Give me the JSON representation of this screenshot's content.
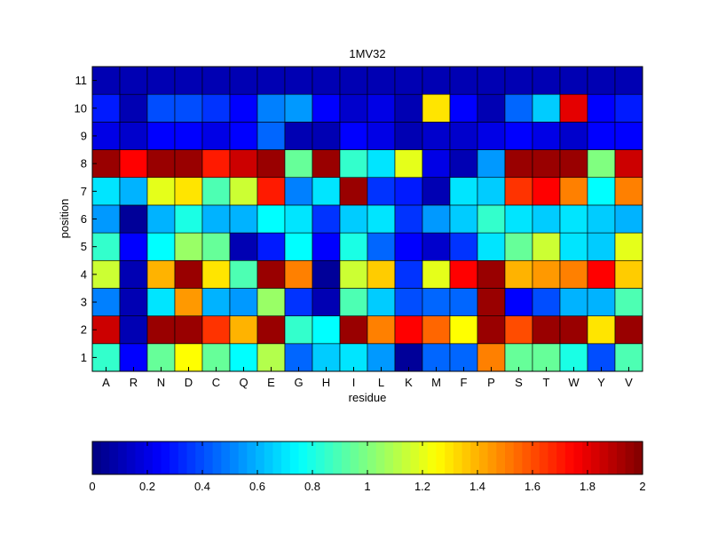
{
  "chart_data": {
    "type": "heatmap",
    "title": "1MV32",
    "xlabel": "residue",
    "ylabel": "position",
    "x_categories": [
      "A",
      "R",
      "N",
      "D",
      "C",
      "Q",
      "E",
      "G",
      "H",
      "I",
      "L",
      "K",
      "M",
      "F",
      "P",
      "S",
      "T",
      "W",
      "Y",
      "V"
    ],
    "y_categories": [
      "1",
      "2",
      "3",
      "4",
      "5",
      "6",
      "7",
      "8",
      "9",
      "10",
      "11"
    ],
    "values": [
      [
        0.85,
        0.25,
        0.95,
        1.25,
        0.95,
        0.75,
        1.1,
        0.45,
        0.65,
        0.7,
        0.55,
        0.05,
        0.45,
        0.45,
        1.5,
        0.95,
        0.95,
        0.8,
        0.4,
        0.9
      ],
      [
        1.85,
        0.1,
        1.95,
        1.95,
        1.65,
        1.4,
        1.95,
        0.85,
        0.75,
        1.95,
        1.5,
        1.75,
        1.55,
        1.25,
        1.95,
        1.6,
        1.95,
        1.95,
        1.3,
        1.95
      ],
      [
        0.5,
        0.1,
        0.7,
        1.45,
        0.6,
        0.55,
        1.05,
        0.35,
        0.1,
        0.9,
        0.65,
        0.4,
        0.45,
        0.45,
        1.95,
        0.25,
        0.4,
        0.6,
        0.6,
        0.9
      ],
      [
        1.15,
        0.1,
        1.4,
        1.95,
        1.3,
        0.9,
        1.95,
        1.5,
        0.05,
        1.15,
        1.35,
        0.35,
        1.2,
        1.75,
        1.95,
        1.4,
        1.45,
        1.5,
        1.75,
        1.35
      ],
      [
        0.85,
        0.25,
        0.75,
        1.05,
        0.95,
        0.1,
        0.3,
        0.75,
        0.25,
        0.8,
        0.45,
        0.25,
        0.15,
        0.35,
        0.7,
        0.95,
        1.15,
        0.7,
        0.65,
        1.2
      ],
      [
        0.55,
        0.05,
        0.6,
        0.8,
        0.6,
        0.6,
        0.75,
        0.7,
        0.35,
        0.65,
        0.7,
        0.35,
        0.55,
        0.65,
        0.85,
        0.7,
        0.65,
        0.7,
        0.65,
        0.6
      ],
      [
        0.7,
        0.6,
        1.2,
        1.3,
        0.9,
        1.15,
        1.7,
        0.5,
        0.7,
        1.95,
        0.35,
        0.3,
        0.1,
        0.7,
        0.65,
        1.65,
        1.75,
        1.5,
        0.75,
        1.5
      ],
      [
        1.95,
        1.75,
        1.95,
        1.95,
        1.7,
        1.85,
        1.95,
        0.95,
        1.95,
        0.85,
        0.7,
        1.2,
        0.2,
        0.1,
        0.55,
        1.95,
        1.95,
        1.95,
        1.0,
        1.85
      ],
      [
        0.2,
        0.15,
        0.25,
        0.25,
        0.2,
        0.25,
        0.45,
        0.1,
        0.1,
        0.25,
        0.2,
        0.1,
        0.15,
        0.15,
        0.2,
        0.25,
        0.2,
        0.15,
        0.25,
        0.25
      ],
      [
        0.3,
        0.1,
        0.4,
        0.4,
        0.35,
        0.25,
        0.5,
        0.55,
        0.25,
        0.15,
        0.2,
        0.1,
        1.3,
        0.25,
        0.1,
        0.45,
        0.65,
        1.8,
        0.25,
        0.3
      ],
      [
        0.1,
        0.1,
        0.1,
        0.1,
        0.1,
        0.1,
        0.1,
        0.1,
        0.1,
        0.1,
        0.1,
        0.1,
        0.1,
        0.1,
        0.1,
        0.1,
        0.1,
        0.1,
        0.1,
        0.1
      ]
    ],
    "colormap": "jet",
    "clim": [
      0,
      2
    ],
    "colorbar": {
      "orientation": "horizontal",
      "placement": "bottom",
      "ticks": [
        "0",
        "0.2",
        "0.4",
        "0.6",
        "0.8",
        "1",
        "1.2",
        "1.4",
        "1.6",
        "1.8",
        "2"
      ]
    },
    "grid": false
  }
}
